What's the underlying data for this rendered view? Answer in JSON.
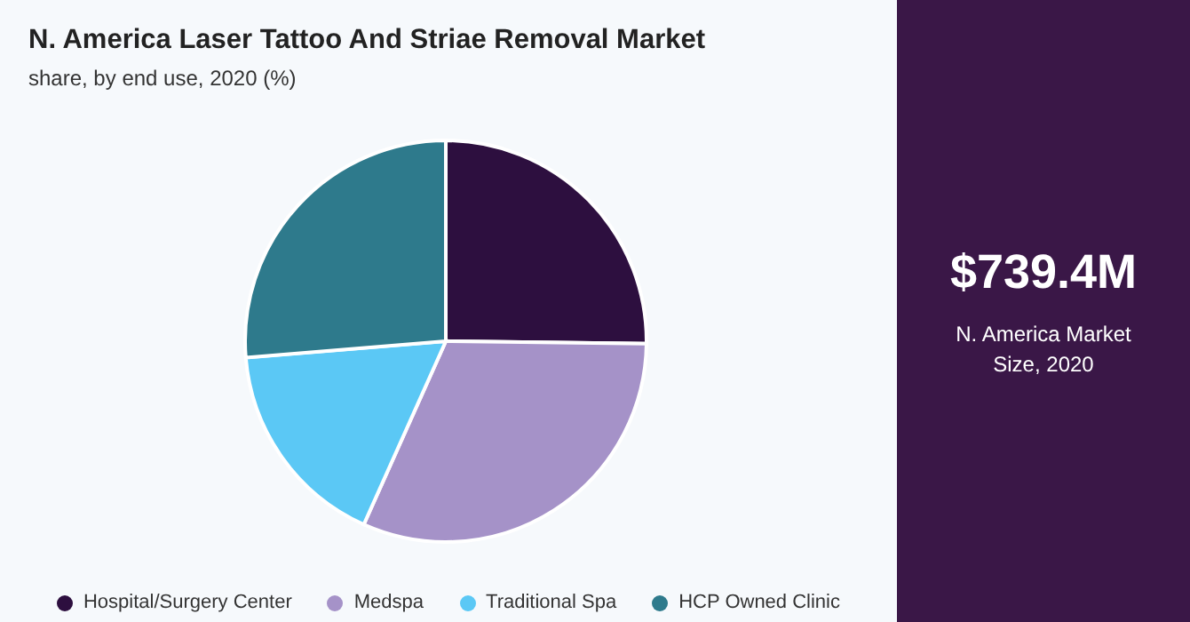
{
  "chart_data": {
    "type": "pie",
    "title": "N. America Laser Tattoo And Striae Removal Market",
    "subtitle": "share, by end use, 2020 (%)",
    "categories": [
      "Hospital/Surgery Center",
      "Medspa",
      "Traditional Spa",
      "HCP Owned Clinic"
    ],
    "values": [
      25.2,
      31.5,
      17,
      26.3
    ],
    "colors": [
      "#2d0f3f",
      "#a592c8",
      "#5bc8f5",
      "#2e7a8c"
    ],
    "legend": "bottom",
    "annotations": [
      "$739.4M",
      "N. America Market Size, 2020"
    ]
  }
}
